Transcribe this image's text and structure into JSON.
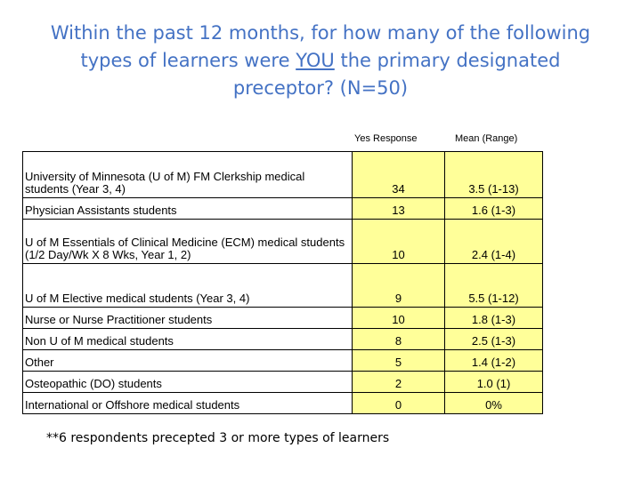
{
  "title": {
    "line1": "Within the past 12 months, for how many of the following",
    "line2_pre": "types of learners were ",
    "line2_emph": "YOU",
    "line2_post": " the primary designated",
    "line3": "preceptor? (N=50)"
  },
  "table": {
    "headers": {
      "yes": "Yes Response",
      "mean": "Mean (Range)"
    },
    "rows": [
      {
        "label": "University of Minnesota (U of M) FM Clerkship medical students (Year 3, 4)",
        "yes": "34",
        "mean": "3.5 (1-13)"
      },
      {
        "label": "Physician Assistants students",
        "yes": "13",
        "mean": "1.6 (1-3)"
      },
      {
        "label": "U of M Essentials of Clinical Medicine (ECM) medical students (1/2 Day/Wk X 8 Wks, Year 1, 2)",
        "yes": "10",
        "mean": "2.4 (1-4)"
      },
      {
        "label": "U of M Elective medical students (Year 3, 4)",
        "yes": "9",
        "mean": "5.5 (1-12)"
      },
      {
        "label": "Nurse or Nurse Practitioner students",
        "yes": "10",
        "mean": "1.8 (1-3)"
      },
      {
        "label": "Non U of M medical students",
        "yes": "8",
        "mean": "2.5 (1-3)"
      },
      {
        "label": "Other",
        "yes": "5",
        "mean": "1.4 (1-2)"
      },
      {
        "label": "Osteopathic (DO) students",
        "yes": "2",
        "mean": "1.0 (1)"
      },
      {
        "label": "International or Offshore medical students",
        "yes": "0",
        "mean": "0%"
      }
    ]
  },
  "footnote": "**6 respondents precepted 3 or more types of learners",
  "colors": {
    "title": "#4472c4",
    "highlight": "#ffff99"
  }
}
